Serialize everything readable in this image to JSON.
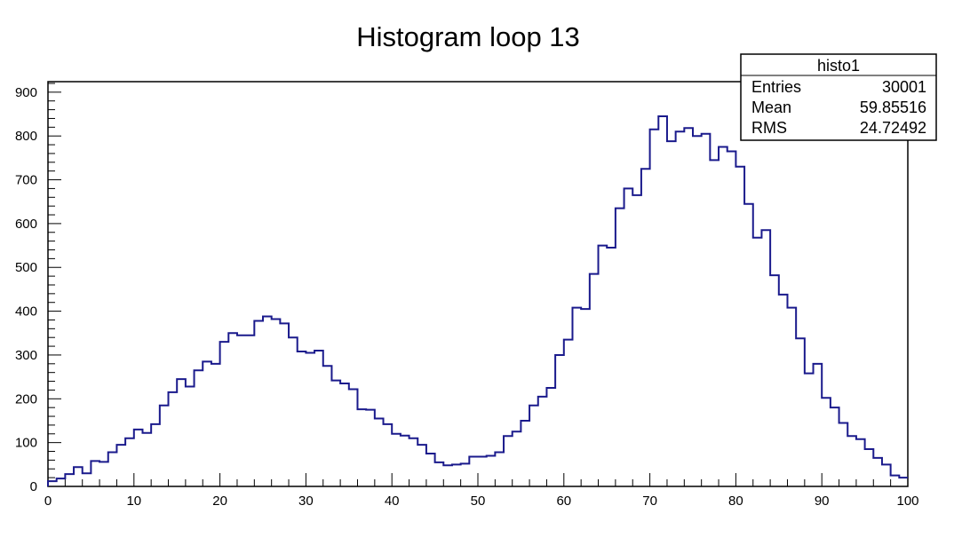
{
  "chart_data": {
    "type": "histogram",
    "title": "Histogram loop 13",
    "xlabel": "",
    "ylabel": "",
    "xlim": [
      0,
      100
    ],
    "ylim": [
      0,
      924
    ],
    "bin_width": 1,
    "x_ticks": [
      0,
      10,
      20,
      30,
      40,
      50,
      60,
      70,
      80,
      90,
      100
    ],
    "y_ticks": [
      0,
      100,
      200,
      300,
      400,
      500,
      600,
      700,
      800,
      900
    ],
    "grid": false,
    "line_color": "#1a1a8c",
    "values": [
      12,
      18,
      28,
      44,
      30,
      58,
      56,
      78,
      95,
      110,
      130,
      122,
      142,
      185,
      215,
      245,
      228,
      265,
      285,
      280,
      330,
      350,
      345,
      345,
      378,
      388,
      382,
      372,
      340,
      308,
      305,
      310,
      275,
      242,
      235,
      222,
      176,
      175,
      155,
      142,
      120,
      116,
      110,
      95,
      75,
      55,
      48,
      50,
      52,
      68,
      68,
      70,
      78,
      115,
      125,
      150,
      185,
      205,
      225,
      300,
      335,
      408,
      405,
      485,
      550,
      545,
      635,
      680,
      665,
      725,
      815,
      845,
      788,
      810,
      818,
      800,
      805,
      745,
      775,
      765,
      730,
      645,
      568,
      585,
      482,
      438,
      408,
      338,
      258,
      280,
      202,
      180,
      145,
      115,
      108,
      85,
      65,
      50,
      25,
      20
    ]
  },
  "stats_box": {
    "title": "histo1",
    "rows": [
      {
        "label": "Entries",
        "value": "30001"
      },
      {
        "label": "Mean",
        "value": "59.85516"
      },
      {
        "label": "RMS",
        "value": "24.72492"
      }
    ]
  }
}
